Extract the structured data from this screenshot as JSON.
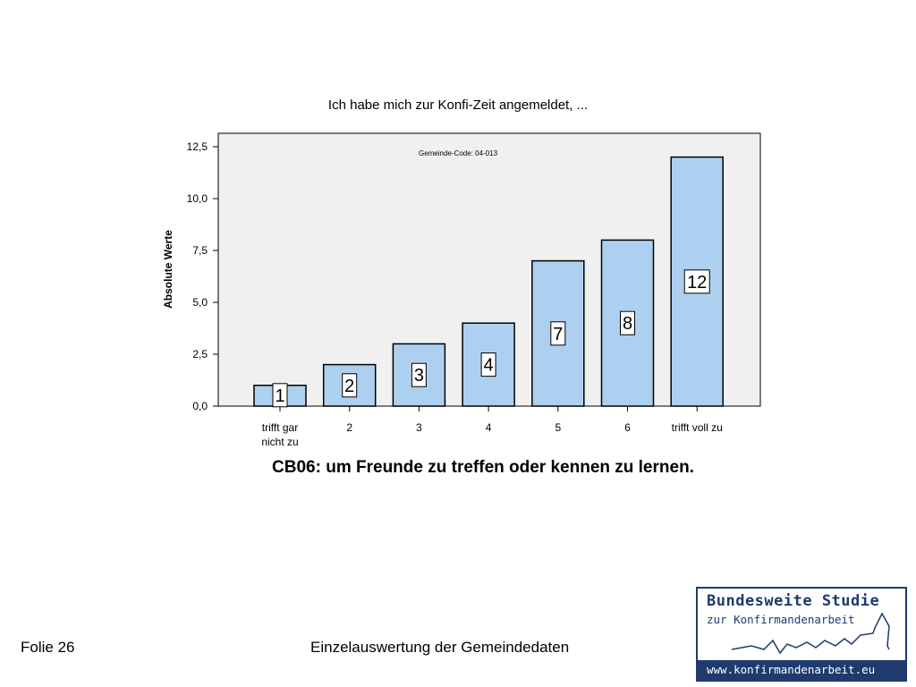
{
  "chart_data": {
    "type": "bar",
    "title": "Ich habe mich zur Konfi-Zeit angemeldet, ...",
    "annotation": "Gemeinde-Code: 04-013",
    "ylabel": "Absolute Werte",
    "xlabel": "CB06: um Freunde zu treffen oder kennen zu lernen.",
    "categories": [
      "trifft gar nicht zu",
      "2",
      "3",
      "4",
      "5",
      "6",
      "trifft voll zu"
    ],
    "values": [
      1,
      2,
      3,
      4,
      7,
      8,
      12
    ],
    "data_labels": [
      "1",
      "2",
      "3",
      "4",
      "7",
      "8",
      "12"
    ],
    "yticks": [
      "0,0",
      "2,5",
      "5,0",
      "7,5",
      "10,0",
      "12,5"
    ],
    "ylim": [
      0,
      12.5
    ],
    "grid": false,
    "colors": {
      "bar_fill": "#aed0f0",
      "bar_stroke": "#000000",
      "plot_bg": "#f0f0f0"
    }
  },
  "footer": {
    "slide": "Folie 26",
    "caption": "Einzelauswertung der Gemeindedaten"
  },
  "logo": {
    "title": "Bundesweite Studie",
    "subtitle": "zur Konfirmandenarbeit",
    "url": "www.konfirmandenarbeit.eu"
  }
}
